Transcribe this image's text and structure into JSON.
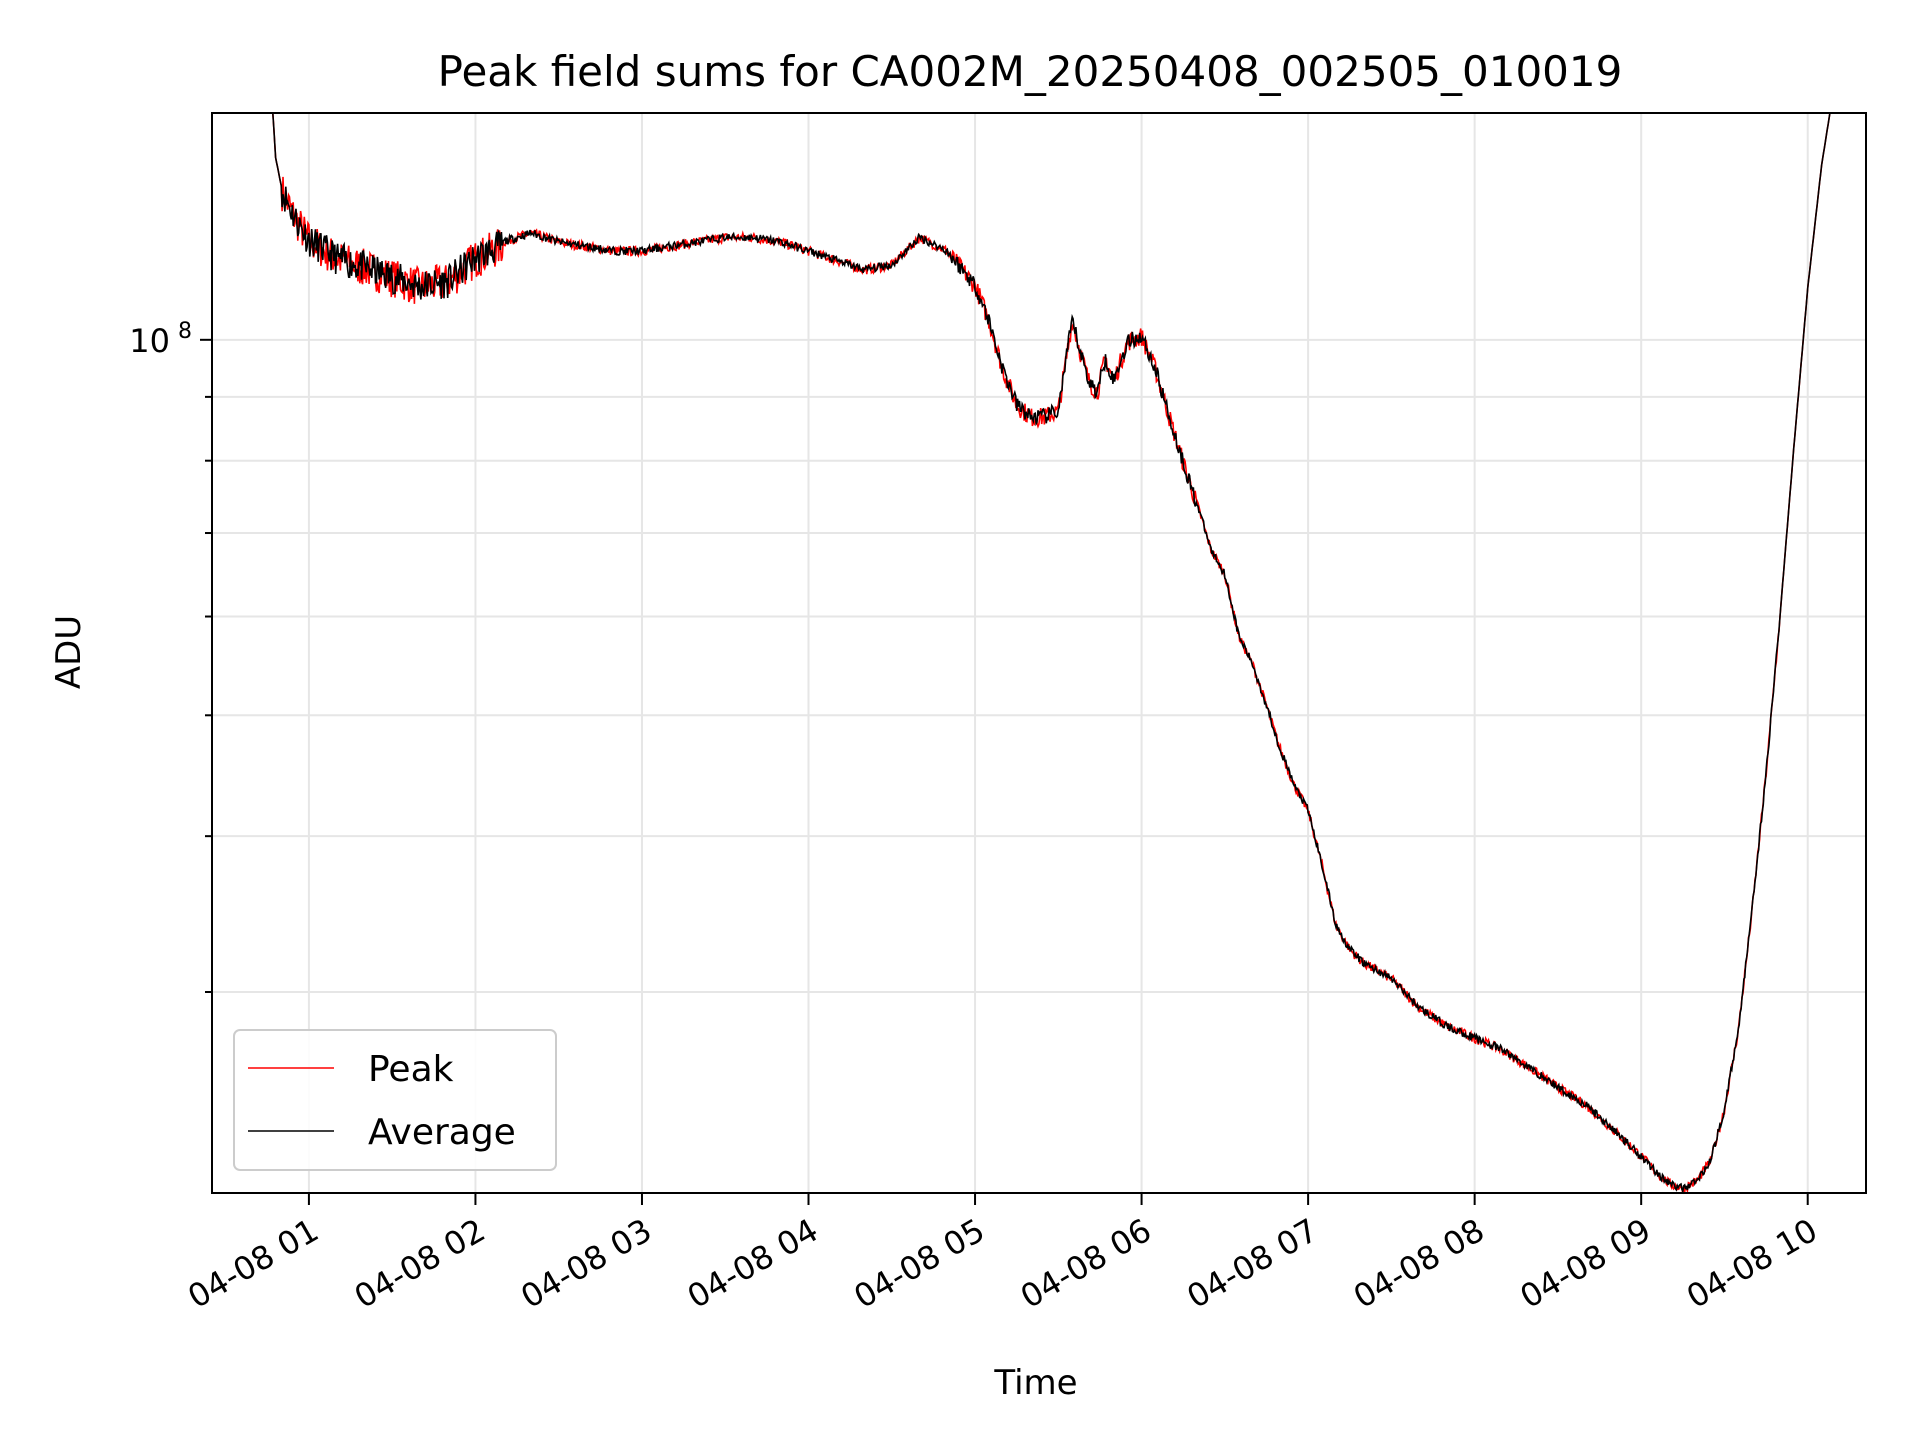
{
  "chart_data": {
    "type": "line",
    "title": "Peak field sums for CA002M_20250408_002505_010019",
    "xlabel": "Time",
    "ylabel": "ADU",
    "yscale": "log",
    "y_major_tick": {
      "value": 100000000,
      "label": "10",
      "exponent": "8"
    },
    "ylim": [
      20700000,
      152000000
    ],
    "xlim": [
      "2025-04-08 00:25:05",
      "2025-04-08 10:21:00"
    ],
    "x_ticks": [
      {
        "t": "2025-04-08 01:00",
        "label": "04-08 01"
      },
      {
        "t": "2025-04-08 02:00",
        "label": "04-08 02"
      },
      {
        "t": "2025-04-08 03:00",
        "label": "04-08 03"
      },
      {
        "t": "2025-04-08 04:00",
        "label": "04-08 04"
      },
      {
        "t": "2025-04-08 05:00",
        "label": "04-08 05"
      },
      {
        "t": "2025-04-08 06:00",
        "label": "04-08 06"
      },
      {
        "t": "2025-04-08 07:00",
        "label": "04-08 07"
      },
      {
        "t": "2025-04-08 08:00",
        "label": "04-08 08"
      },
      {
        "t": "2025-04-08 09:00",
        "label": "04-08 09"
      },
      {
        "t": "2025-04-08 10:00",
        "label": "04-08 10"
      }
    ],
    "y_minor_ticks": [
      30000000,
      40000000,
      50000000,
      60000000,
      70000000,
      80000000,
      90000000,
      200000000
    ],
    "grid": true,
    "legend": {
      "position": "lower-left"
    },
    "series": [
      {
        "name": "Peak",
        "color": "#ff0000"
      },
      {
        "name": "Average",
        "color": "#000000"
      }
    ],
    "x": [
      "00:25",
      "00:47",
      "00:48",
      "00:50",
      "00:55",
      "01:00",
      "01:10",
      "01:20",
      "01:30",
      "01:40",
      "01:50",
      "02:00",
      "02:10",
      "02:20",
      "02:30",
      "02:40",
      "02:50",
      "03:00",
      "03:10",
      "03:20",
      "03:30",
      "03:40",
      "03:50",
      "04:00",
      "04:10",
      "04:20",
      "04:30",
      "04:40",
      "04:50",
      "05:00",
      "05:05",
      "05:10",
      "05:15",
      "05:20",
      "05:25",
      "05:30",
      "05:35",
      "05:38",
      "05:41",
      "05:44",
      "05:47",
      "05:50",
      "05:55",
      "06:00",
      "06:05",
      "06:10",
      "06:15",
      "06:20",
      "06:25",
      "06:30",
      "06:35",
      "06:40",
      "06:45",
      "06:50",
      "06:55",
      "07:00",
      "07:05",
      "07:10",
      "07:15",
      "07:20",
      "07:30",
      "07:40",
      "07:50",
      "08:00",
      "08:10",
      "08:20",
      "08:30",
      "08:40",
      "08:50",
      "09:00",
      "09:05",
      "09:10",
      "09:15",
      "09:20",
      "09:25",
      "09:30",
      "09:35",
      "09:40",
      "09:45",
      "09:50",
      "09:55",
      "10:00",
      "10:05",
      "10:08",
      "10:21"
    ],
    "values": [
      152000000,
      152000000,
      140000000,
      133000000,
      126000000,
      121000000,
      117000000,
      115000000,
      113000000,
      111000000,
      112000000,
      117000000,
      120000000,
      122000000,
      120000000,
      119000000,
      118000000,
      118000000,
      119000000,
      120000000,
      121000000,
      121000000,
      120000000,
      118000000,
      116000000,
      114000000,
      115000000,
      121000000,
      118000000,
      111000000,
      104000000,
      95000000,
      89000000,
      87000000,
      87000000,
      88000000,
      104000000,
      98000000,
      93000000,
      91000000,
      97000000,
      93000000,
      100000000,
      101000000,
      95000000,
      87000000,
      80000000,
      74000000,
      68000000,
      65000000,
      58000000,
      55000000,
      51000000,
      47000000,
      44000000,
      42000000,
      38000000,
      34000000,
      32500000,
      31700000,
      30800000,
      29200000,
      28200000,
      27600000,
      27000000,
      26100000,
      25200000,
      24400000,
      23300000,
      22200000,
      21600000,
      21100000,
      20900000,
      21200000,
      22000000,
      24200000,
      28000000,
      35000000,
      45000000,
      60000000,
      82000000,
      110000000,
      138000000,
      152000000,
      152000000
    ]
  }
}
